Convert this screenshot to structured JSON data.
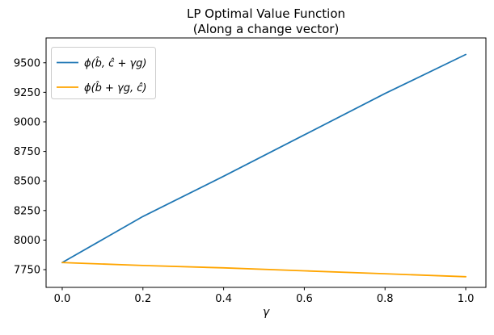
{
  "title": {
    "line1": "LP Optimal Value Function",
    "line2": "(Along a change vector)"
  },
  "colors": {
    "series_blue": "#1f77b4",
    "series_orange": "#ffa500",
    "axis": "#000000",
    "legend_border": "#cccccc",
    "background": "#ffffff"
  },
  "chart_data": {
    "type": "line",
    "title": "LP Optimal Value Function (Along a change vector)",
    "xlabel": "γ",
    "ylabel": "",
    "x": [
      0.0,
      0.2,
      0.4,
      0.6,
      0.8,
      1.0
    ],
    "series": [
      {
        "name": "ϕ(b̂, ĉ + γg)",
        "color": "#1f77b4",
        "values": [
          7810,
          8200,
          8540,
          8890,
          9240,
          9570
        ]
      },
      {
        "name": "ϕ(b̂ + γg, ĉ)",
        "color": "#ffa500",
        "values": [
          7810,
          7785,
          7765,
          7740,
          7715,
          7690
        ]
      }
    ],
    "xticks": [
      0.0,
      0.2,
      0.4,
      0.6,
      0.8,
      1.0
    ],
    "xtick_labels": [
      "0.0",
      "0.2",
      "0.4",
      "0.6",
      "0.8",
      "1.0"
    ],
    "yticks": [
      7750,
      8000,
      8250,
      8500,
      8750,
      9000,
      9250,
      9500
    ],
    "ytick_labels": [
      "7750",
      "8000",
      "8250",
      "8500",
      "8750",
      "9000",
      "9250",
      "9500"
    ],
    "xlim": [
      -0.04,
      1.05
    ],
    "ylim": [
      7600,
      9710
    ],
    "grid": false,
    "legend_position": "upper left"
  }
}
